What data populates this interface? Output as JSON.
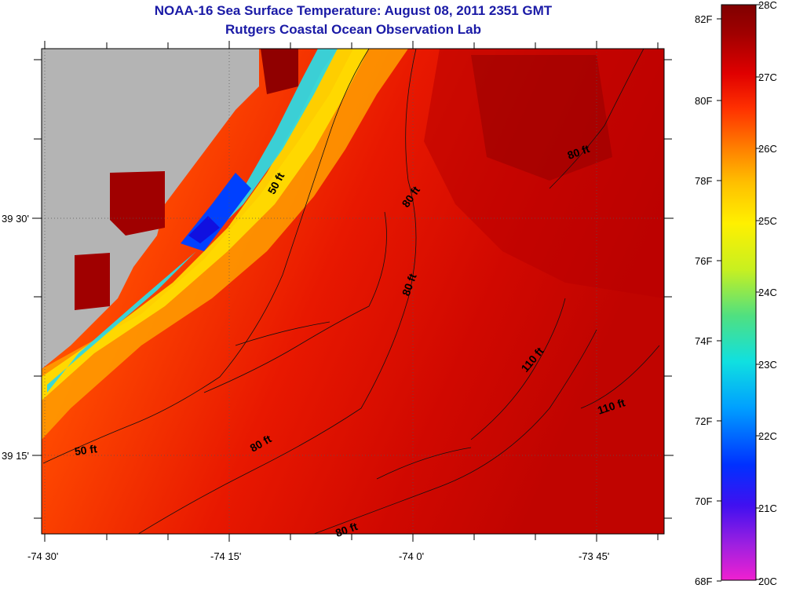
{
  "title": "NOAA-16 Sea Surface Temperature:  August 08, 2011 2351 GMT",
  "subtitle": "Rutgers Coastal Ocean Observation Lab",
  "x_ticks": [
    "-74 30'",
    "-74 15'",
    "-74 0'",
    "-73 45'"
  ],
  "y_ticks": [
    "39 30'",
    "39 15'"
  ],
  "contours": [
    {
      "id": "c50a",
      "label": "50 ft"
    },
    {
      "id": "c50b",
      "label": "50 ft"
    },
    {
      "id": "c80a",
      "label": "80 ft"
    },
    {
      "id": "c80b",
      "label": "80 ft"
    },
    {
      "id": "c80c",
      "label": "80 ft"
    },
    {
      "id": "c80d",
      "label": "80 ft"
    },
    {
      "id": "c80e",
      "label": "80 ft"
    },
    {
      "id": "c110a",
      "label": "110 ft"
    },
    {
      "id": "c110b",
      "label": "110 ft"
    }
  ],
  "colorbar": {
    "fahrenheit": [
      "82F",
      "80F",
      "78F",
      "76F",
      "74F",
      "72F",
      "70F",
      "68F"
    ],
    "celsius": [
      "28C",
      "27C",
      "26C",
      "25C",
      "24C",
      "23C",
      "22C",
      "21C",
      "20C"
    ],
    "colors": [
      "#f020d0",
      "#a020e0",
      "#4010f0",
      "#0030ff",
      "#00a0ff",
      "#10e0e0",
      "#50e080",
      "#c8f020",
      "#fff000",
      "#ffc000",
      "#ff8000",
      "#ff3000",
      "#e00000",
      "#a00000",
      "#800000"
    ]
  },
  "colors": {
    "land": "#b4b4b4",
    "title": "#1a1aa6",
    "sea_warm": "#e01000",
    "sea_dark": "#a00000"
  }
}
